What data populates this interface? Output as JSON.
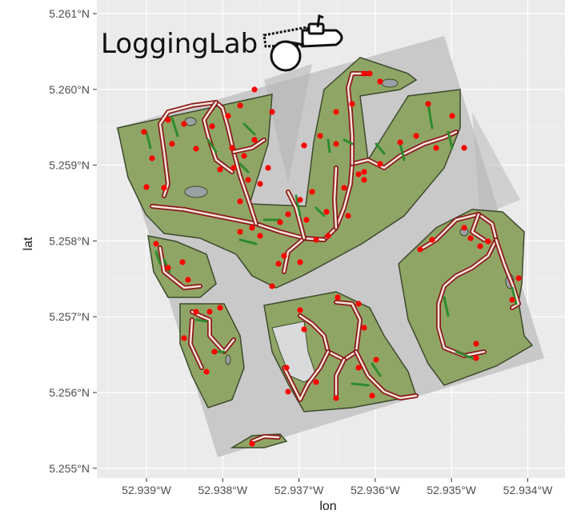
{
  "logo": {
    "text": "LoggingLab",
    "icon": "chainsaw-icon"
  },
  "colors": {
    "panel_bg": "#ebebeb",
    "grid": "#ffffff",
    "terrain": "#c9c9c9",
    "forest_fill": "#8fa566",
    "forest_stroke": "#3d4a2c",
    "water": "#9aa0a3",
    "trail_outer": "#8b1a1a",
    "trail_inner": "#f5e6dc",
    "skid_green": "#2e8b2e",
    "tree_marker": "#ff0000"
  },
  "chart_data": {
    "type": "map",
    "xlabel": "lon",
    "ylabel": "lat",
    "x_ticks": [
      "52.939°W",
      "52.938°W",
      "52.937°W",
      "52.936°W",
      "52.935°W",
      "52.934°W"
    ],
    "y_ticks": [
      "5.261°N",
      "5.260°N",
      "5.259°N",
      "5.258°N",
      "5.257°N",
      "5.256°N",
      "5.255°N"
    ],
    "x_values": [
      -52.939,
      -52.938,
      -52.937,
      -52.936,
      -52.935,
      -52.934
    ],
    "y_values": [
      5.261,
      5.26,
      5.259,
      5.258,
      5.257,
      5.256,
      5.255
    ],
    "layers": [
      "terrain-hillshade",
      "forest-units",
      "water-areas",
      "skid-trails",
      "harvested-trees"
    ]
  }
}
